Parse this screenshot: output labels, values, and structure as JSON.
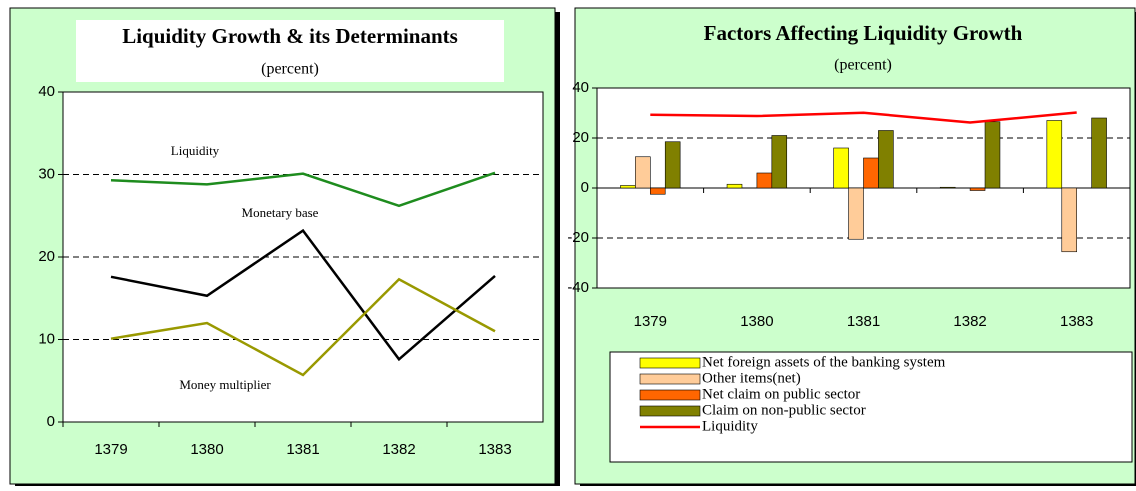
{
  "chart_data": [
    {
      "type": "line",
      "title": "Liquidity Growth & its Determinants",
      "subtitle": "(percent)",
      "categories": [
        "1379",
        "1380",
        "1381",
        "1382",
        "1383"
      ],
      "series": [
        {
          "name": "Liquidity",
          "color": "#1e8c1e",
          "values": [
            29.3,
            28.8,
            30.1,
            26.2,
            30.2
          ]
        },
        {
          "name": "Monetary base",
          "color": "#000000",
          "values": [
            17.6,
            15.3,
            23.2,
            7.6,
            17.7
          ]
        },
        {
          "name": "Money multiplier",
          "color": "#999900",
          "values": [
            10.1,
            12.0,
            5.7,
            17.3,
            11.0
          ]
        }
      ],
      "ylim": [
        0,
        40
      ],
      "yticks": [
        0,
        10,
        20,
        30,
        40
      ],
      "grid": true
    },
    {
      "type": "bar",
      "title": "Factors Affecting Liquidity Growth",
      "subtitle": "(percent)",
      "categories": [
        "1379",
        "1380",
        "1381",
        "1382",
        "1383"
      ],
      "series": [
        {
          "name": "Net foreign assets of the banking system",
          "color": "#ffff00",
          "values": [
            1,
            1.5,
            16,
            0.3,
            27
          ]
        },
        {
          "name": "Other items(net)",
          "color": "#ffcc99",
          "values": [
            12.5,
            0,
            -20.5,
            0,
            -25.5
          ]
        },
        {
          "name": "Net claim on public sector",
          "color": "#ff6600",
          "values": [
            -2.5,
            6,
            12,
            -1,
            0
          ]
        },
        {
          "name": "Claim on non-public sector",
          "color": "#808000",
          "values": [
            18.5,
            21,
            23,
            26.5,
            28
          ]
        },
        {
          "name": "Liquidity",
          "type": "line",
          "color": "#ff0000",
          "values": [
            29.3,
            28.8,
            30.1,
            26.2,
            30.2
          ]
        }
      ],
      "ylim": [
        -40,
        40
      ],
      "yticks": [
        -40,
        -20,
        0,
        20,
        40
      ],
      "grid": true,
      "legend": "bottom"
    }
  ]
}
